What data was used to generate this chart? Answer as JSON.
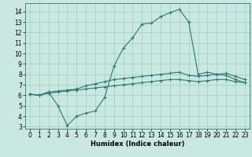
{
  "xlabel": "Humidex (Indice chaleur)",
  "bg_color": "#c8e8e0",
  "line_color": "#2e7872",
  "grid_color": "#9eccc4",
  "xlim": [
    -0.5,
    23.5
  ],
  "ylim": [
    2.8,
    14.8
  ],
  "yticks": [
    3,
    4,
    5,
    6,
    7,
    8,
    9,
    10,
    11,
    12,
    13,
    14
  ],
  "xticks": [
    0,
    1,
    2,
    3,
    4,
    5,
    6,
    7,
    8,
    9,
    10,
    11,
    12,
    13,
    14,
    15,
    16,
    17,
    18,
    19,
    20,
    21,
    22,
    23
  ],
  "line1_x": [
    0,
    1,
    2,
    3,
    4,
    5,
    6,
    7,
    8,
    9,
    10,
    11,
    12,
    13,
    14,
    15,
    16,
    17,
    18,
    19,
    20,
    21,
    22,
    23
  ],
  "line1_y": [
    6.1,
    6.0,
    6.3,
    5.0,
    3.1,
    4.0,
    4.3,
    4.5,
    5.8,
    8.8,
    10.5,
    11.5,
    12.8,
    12.9,
    13.5,
    13.9,
    14.2,
    13.0,
    8.0,
    8.2,
    8.0,
    7.9,
    7.5,
    7.2
  ],
  "line2_x": [
    0,
    1,
    2,
    3,
    4,
    5,
    6,
    7,
    8,
    9,
    10,
    11,
    12,
    13,
    14,
    15,
    16,
    17,
    18,
    19,
    20,
    21,
    22,
    23
  ],
  "line2_y": [
    6.1,
    6.0,
    6.3,
    6.4,
    6.5,
    6.6,
    6.9,
    7.1,
    7.3,
    7.5,
    7.6,
    7.7,
    7.8,
    7.9,
    8.0,
    8.1,
    8.2,
    7.9,
    7.8,
    7.9,
    8.0,
    8.1,
    7.8,
    7.5
  ],
  "line3_x": [
    0,
    1,
    2,
    3,
    4,
    5,
    6,
    7,
    8,
    9,
    10,
    11,
    12,
    13,
    14,
    15,
    16,
    17,
    18,
    19,
    20,
    21,
    22,
    23
  ],
  "line3_y": [
    6.1,
    6.0,
    6.2,
    6.3,
    6.4,
    6.5,
    6.6,
    6.7,
    6.8,
    6.9,
    7.0,
    7.1,
    7.2,
    7.3,
    7.4,
    7.5,
    7.5,
    7.4,
    7.3,
    7.4,
    7.5,
    7.5,
    7.3,
    7.2
  ],
  "tick_fontsize": 5.5,
  "xlabel_fontsize": 6.0
}
